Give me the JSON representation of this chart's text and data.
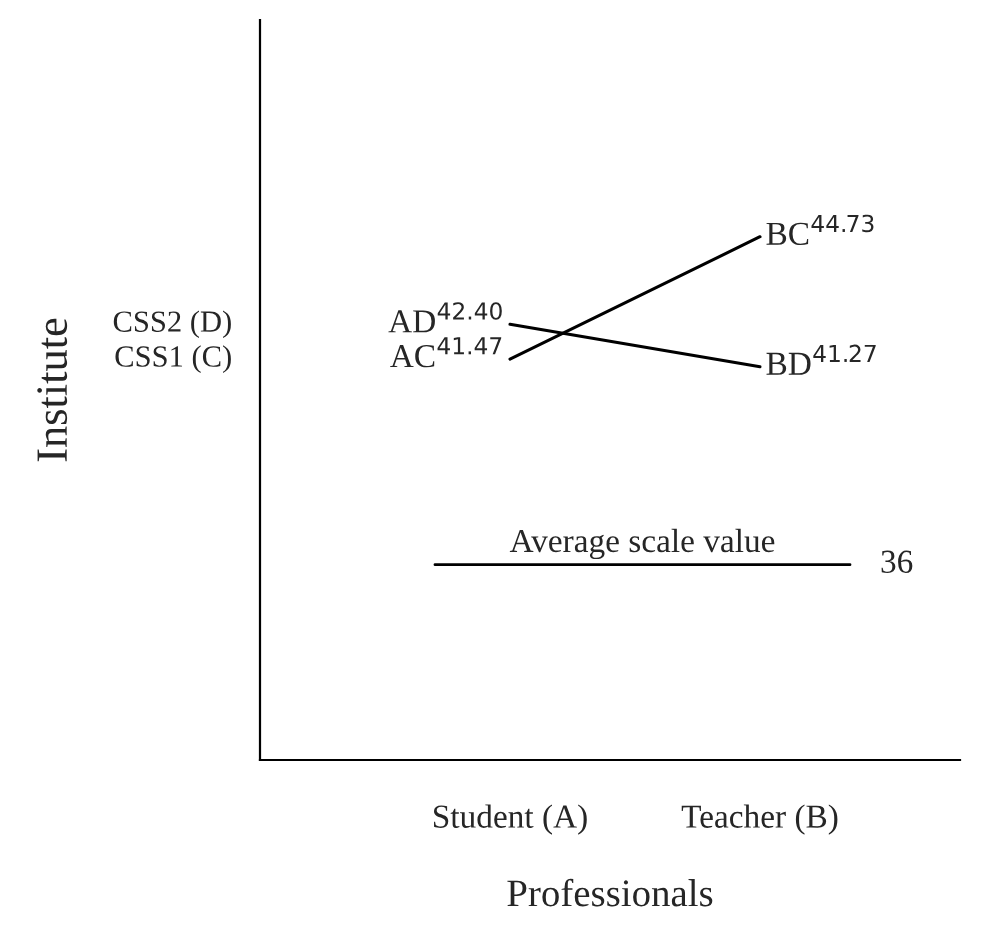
{
  "chart_data": {
    "type": "line",
    "xlabel": "Professionals",
    "categories": [
      "Student (A)",
      "Teacher (B)"
    ],
    "series": [
      {
        "color": "#000000",
        "values": [
          41.47,
          44.73
        ],
        "value_labels": [
          "AC$^{41.47}$",
          "BC$^{44.73}$"
        ]
      },
      {
        "color": "#000000",
        "values": [
          42.4,
          41.27
        ],
        "value_labels": [
          "AD$^{42.40}$",
          "BD$^{41.27}$"
        ]
      }
    ],
    "annotations": [
      "CSS1 (C)",
      "CSS2 (D)",
      "36",
      "Institute"
    ],
    "ref_lines": [
      {
        "axis": "y",
        "value": 36,
        "label": "Average scale value",
        "color": "#000000"
      }
    ],
    "tick_labels": "x",
    "grid": false,
    "legend": false,
    "marker": "none",
    "line_style": "solid"
  }
}
